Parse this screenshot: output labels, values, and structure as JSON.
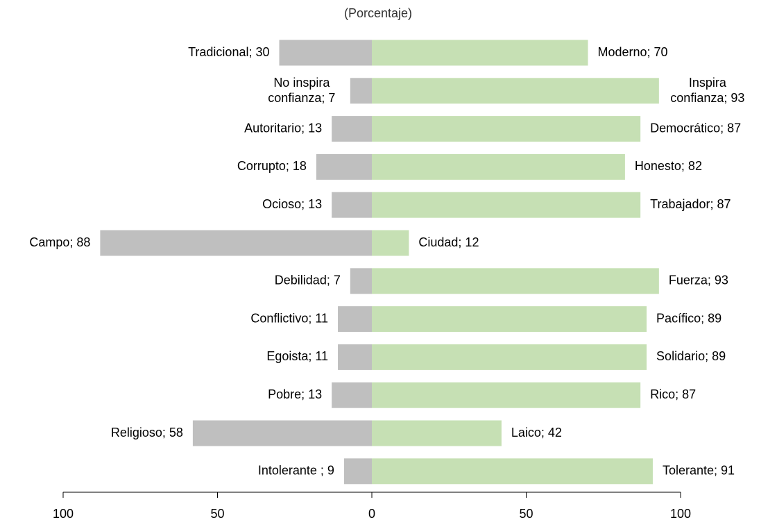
{
  "chart_data": {
    "type": "diverging-bar",
    "subtitle": "(Porcentaje)",
    "series": [
      {
        "color": "#bfbfbf",
        "side": "left",
        "values": [
          30,
          7,
          13,
          18,
          13,
          88,
          7,
          11,
          11,
          13,
          58,
          9
        ],
        "value_labels": [
          "Tradicional; 30",
          "No inspira\nconfianza; 7",
          "Autoritario; 13",
          "Corrupto; 18",
          "Ocioso; 13",
          "Campo; 88",
          "Debilidad; 7",
          "Conflictivo; 11",
          "Egoista; 11",
          "Pobre; 13",
          "Religioso; 58",
          "Intolerante ; 9"
        ]
      },
      {
        "color": "#c6e0b4",
        "side": "right",
        "values": [
          70,
          93,
          87,
          82,
          87,
          12,
          93,
          89,
          89,
          87,
          42,
          91
        ],
        "value_labels": [
          "Moderno; 70",
          "Inspira\nconfianza; 93",
          "Democrático; 87",
          "Honesto; 82",
          "Trabajador; 87",
          "Ciudad; 12",
          "Fuerza; 93",
          "Pacífico; 89",
          "Solidario; 89",
          "Rico; 87",
          "Laico; 42",
          "Tolerante; 91"
        ]
      }
    ],
    "xlim": [
      -100,
      100
    ],
    "xticks": [
      {
        "value": -100,
        "label": "100"
      },
      {
        "value": -50,
        "label": "50"
      },
      0,
      50,
      100
    ]
  }
}
